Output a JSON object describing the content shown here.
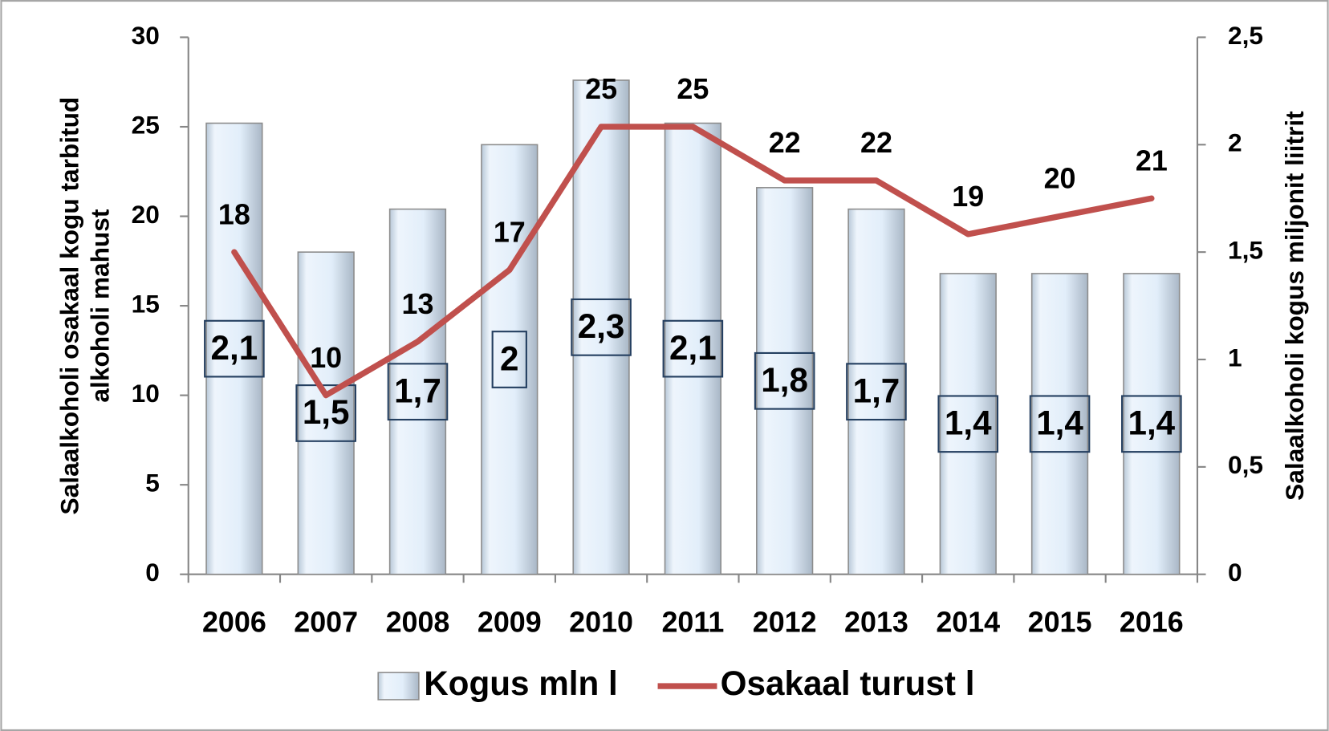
{
  "chart_data": {
    "type": "bar_line",
    "categories": [
      "2006",
      "2007",
      "2008",
      "2009",
      "2010",
      "2011",
      "2012",
      "2013",
      "2014",
      "2015",
      "2016"
    ],
    "series": [
      {
        "name": "Kogus mln l",
        "type": "bar",
        "axis": "y2",
        "color": "#dbe9f7",
        "values": [
          2.1,
          1.5,
          1.7,
          2,
          2.3,
          2.1,
          1.8,
          1.7,
          1.4,
          1.4,
          1.4
        ],
        "value_labels": [
          "2,1",
          "1,5",
          "1,7",
          "2",
          "2,3",
          "2,1",
          "1,8",
          "1,7",
          "1,4",
          "1,4",
          "1,4"
        ]
      },
      {
        "name": "Osakaal turust l",
        "type": "line",
        "axis": "y",
        "color": "#c0504d",
        "values": [
          18,
          10,
          13,
          17,
          25,
          25,
          22,
          22,
          19,
          20,
          21
        ]
      }
    ],
    "ylabel": [
      "Salaalkoholi osakaal kogu tarbitud",
      "alkoholi mahust"
    ],
    "y2label": "Salaalkoholi kogus miljonit liitrit",
    "ylim": [
      0,
      30
    ],
    "yticks": [
      0,
      5,
      10,
      15,
      20,
      25,
      30
    ],
    "y2lim": [
      0,
      2.5
    ],
    "y2ticks": [
      0,
      {
        "value": 0.5,
        "label": "0,5"
      },
      1,
      {
        "value": 1.5,
        "label": "1,5"
      },
      2,
      {
        "value": 2.5,
        "label": "2,5"
      }
    ],
    "grid": false,
    "legend": "bottom"
  }
}
